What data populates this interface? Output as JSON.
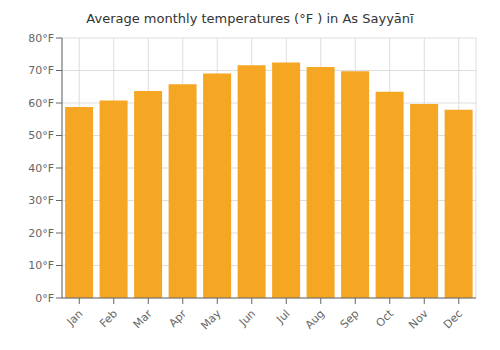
{
  "chart_data": {
    "type": "bar",
    "title": "Average monthly temperatures (°F ) in As Sayyānī",
    "categories": [
      "Jan",
      "Feb",
      "Mar",
      "Apr",
      "May",
      "Jun",
      "Jul",
      "Aug",
      "Sep",
      "Oct",
      "Nov",
      "Dec"
    ],
    "values": [
      58.8,
      60.8,
      63.7,
      65.8,
      69.1,
      71.6,
      72.5,
      71.1,
      69.8,
      63.5,
      59.7,
      57.9
    ],
    "color": "#F5A623",
    "ylim": [
      0,
      80
    ],
    "yticks": [
      {
        "value": 0,
        "label": "0°F"
      },
      {
        "value": 10,
        "label": "10°F"
      },
      {
        "value": 20,
        "label": "20°F"
      },
      {
        "value": 30,
        "label": "30°F"
      },
      {
        "value": 40,
        "label": "40°F"
      },
      {
        "value": 50,
        "label": "50°F"
      },
      {
        "value": 60,
        "label": "60°F"
      },
      {
        "value": 70,
        "label": "70°F"
      },
      {
        "value": 80,
        "label": "80°F"
      }
    ],
    "grid": true
  }
}
